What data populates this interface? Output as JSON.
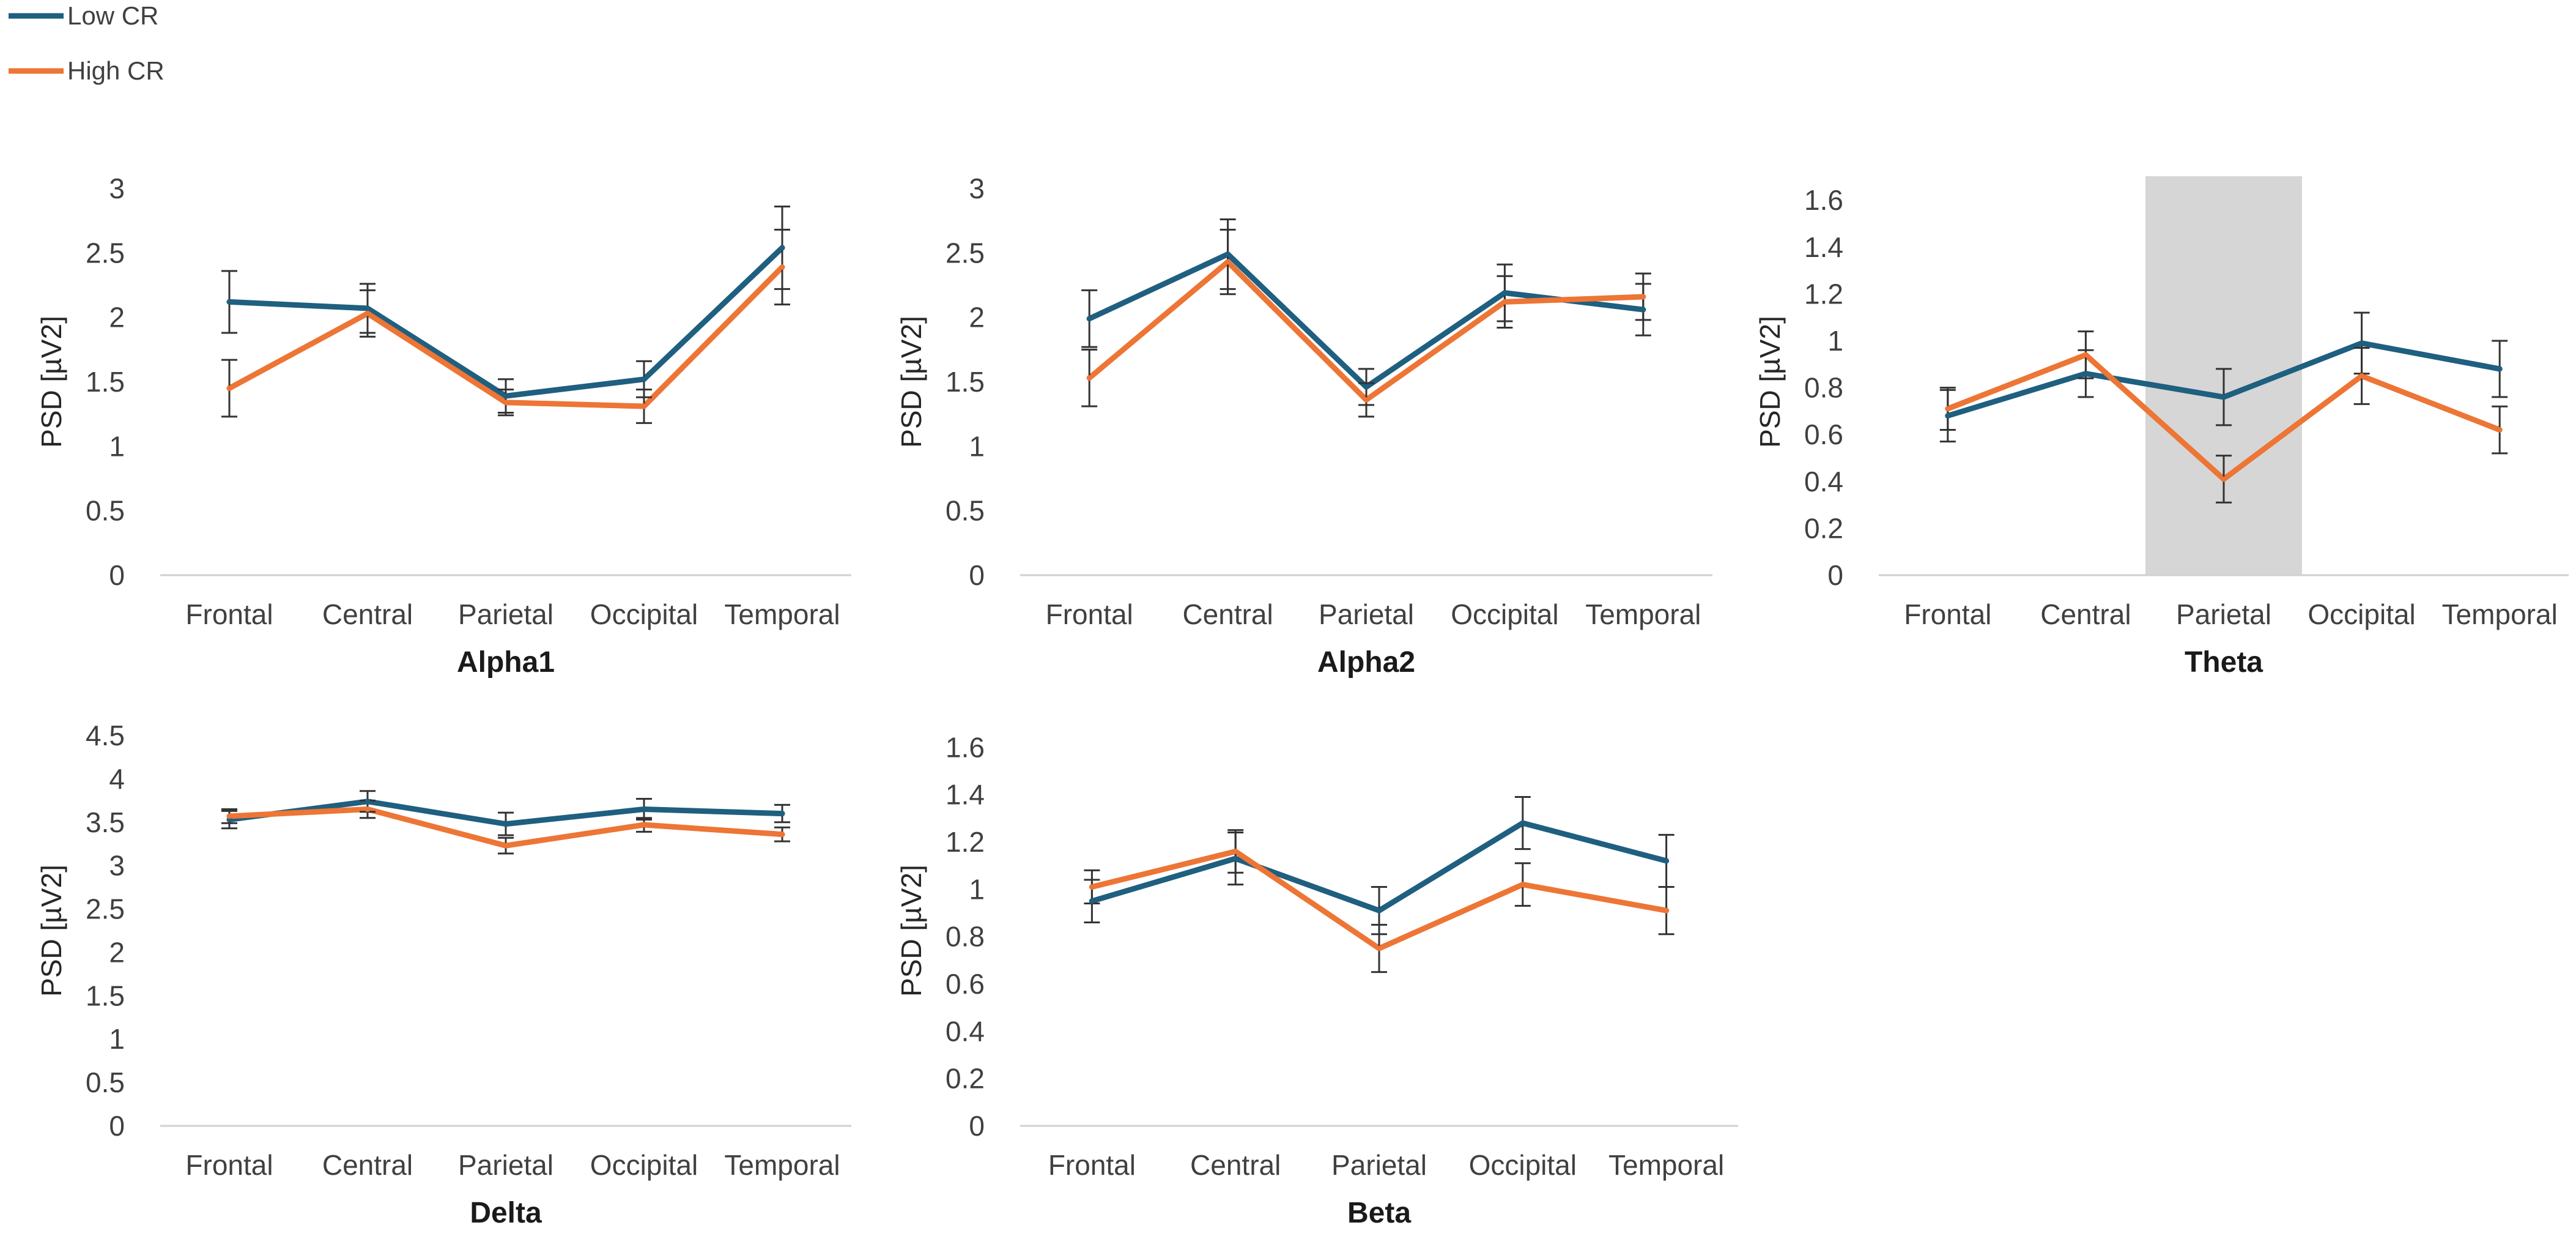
{
  "legend": [
    {
      "name": "Low CR",
      "color": "#1f5f80"
    },
    {
      "name": "High CR",
      "color": "#ed7535"
    }
  ],
  "highlight_color": "#d6d6d6",
  "chart_data": [
    {
      "type": "line",
      "title": "Alpha1",
      "xlabel": "",
      "ylabel": "PSD [µV2]",
      "categories": [
        "Frontal",
        "Central",
        "Parietal",
        "Occipital",
        "Temporal"
      ],
      "ylim": [
        0,
        3
      ],
      "yticks": [
        "0",
        "0.5",
        "1",
        "1.5",
        "2",
        "2.5",
        "3"
      ],
      "series": [
        {
          "name": "Low CR",
          "values": [
            2.12,
            2.07,
            1.39,
            1.52,
            2.54
          ],
          "errors": [
            0.24,
            0.19,
            0.13,
            0.14,
            0.32
          ]
        },
        {
          "name": "High CR",
          "values": [
            1.45,
            2.03,
            1.34,
            1.31,
            2.39
          ],
          "errors": [
            0.22,
            0.18,
            0.1,
            0.13,
            0.29
          ]
        }
      ]
    },
    {
      "type": "line",
      "title": "Alpha2",
      "xlabel": "",
      "ylabel": "PSD [µV2]",
      "categories": [
        "Frontal",
        "Central",
        "Parietal",
        "Occipital",
        "Temporal"
      ],
      "ylim": [
        0,
        3
      ],
      "yticks": [
        "0",
        "0.5",
        "1",
        "1.5",
        "2",
        "2.5",
        "3"
      ],
      "series": [
        {
          "name": "Low CR",
          "values": [
            1.99,
            2.49,
            1.46,
            2.19,
            2.06
          ],
          "errors": [
            0.22,
            0.27,
            0.14,
            0.22,
            0.2
          ]
        },
        {
          "name": "High CR",
          "values": [
            1.53,
            2.43,
            1.36,
            2.12,
            2.16
          ],
          "errors": [
            0.22,
            0.25,
            0.13,
            0.2,
            0.18
          ]
        }
      ]
    },
    {
      "type": "line",
      "title": "Theta",
      "xlabel": "",
      "ylabel": "PSD [µV2]",
      "categories": [
        "Frontal",
        "Central",
        "Parietal",
        "Occipital",
        "Temporal"
      ],
      "ylim": [
        0,
        1.65
      ],
      "yticks": [
        "0",
        "0.2",
        "0.4",
        "0.6",
        "0.8",
        "1",
        "1.2",
        "1.4",
        "1.6"
      ],
      "highlight_category": "Parietal",
      "series": [
        {
          "name": "Low CR",
          "values": [
            0.68,
            0.86,
            0.76,
            0.99,
            0.88
          ],
          "errors": [
            0.11,
            0.1,
            0.12,
            0.13,
            0.12
          ]
        },
        {
          "name": "High CR",
          "values": [
            0.71,
            0.94,
            0.41,
            0.85,
            0.62
          ],
          "errors": [
            0.09,
            0.1,
            0.1,
            0.12,
            0.1
          ]
        }
      ]
    },
    {
      "type": "line",
      "title": "Delta",
      "xlabel": "",
      "ylabel": "PSD [µV2]",
      "categories": [
        "Frontal",
        "Central",
        "Parietal",
        "Occipital",
        "Temporal"
      ],
      "ylim": [
        0,
        4.5
      ],
      "yticks": [
        "0",
        "0.5",
        "1",
        "1.5",
        "2",
        "2.5",
        "3",
        "3.5",
        "4",
        "4.5"
      ],
      "series": [
        {
          "name": "Low CR",
          "values": [
            3.53,
            3.74,
            3.48,
            3.65,
            3.6
          ],
          "errors": [
            0.1,
            0.12,
            0.13,
            0.12,
            0.1
          ]
        },
        {
          "name": "High CR",
          "values": [
            3.57,
            3.65,
            3.23,
            3.47,
            3.36
          ],
          "errors": [
            0.08,
            0.1,
            0.09,
            0.08,
            0.08
          ]
        }
      ]
    },
    {
      "type": "line",
      "title": "Beta",
      "xlabel": "",
      "ylabel": "PSD [µV2]",
      "categories": [
        "Frontal",
        "Central",
        "Parietal",
        "Occipital",
        "Temporal"
      ],
      "ylim": [
        0,
        1.65
      ],
      "yticks": [
        "0",
        "0.2",
        "0.4",
        "0.6",
        "0.8",
        "1",
        "1.2",
        "1.4",
        "1.6"
      ],
      "series": [
        {
          "name": "Low CR",
          "values": [
            0.95,
            1.13,
            0.91,
            1.28,
            1.12
          ],
          "errors": [
            0.09,
            0.11,
            0.1,
            0.11,
            0.11
          ]
        },
        {
          "name": "High CR",
          "values": [
            1.01,
            1.16,
            0.75,
            1.02,
            0.91
          ],
          "errors": [
            0.07,
            0.09,
            0.1,
            0.09,
            0.1
          ]
        }
      ]
    }
  ]
}
